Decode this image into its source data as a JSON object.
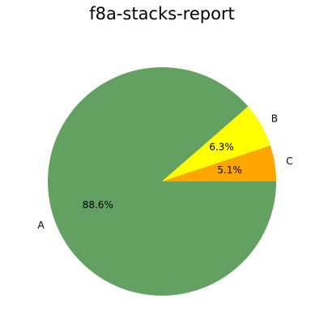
{
  "chart_data": {
    "type": "pie",
    "title": "f8a-stacks-report",
    "categories": [
      "A",
      "B",
      "C"
    ],
    "values": [
      88.6,
      6.3,
      5.1
    ],
    "percent_labels": [
      "88.6%",
      "6.3%",
      "5.1%"
    ],
    "colors": [
      "#62a162",
      "#ffff00",
      "#ffa500"
    ],
    "start_angle": "3 o'clock",
    "direction": "clockwise",
    "legend": "none"
  }
}
